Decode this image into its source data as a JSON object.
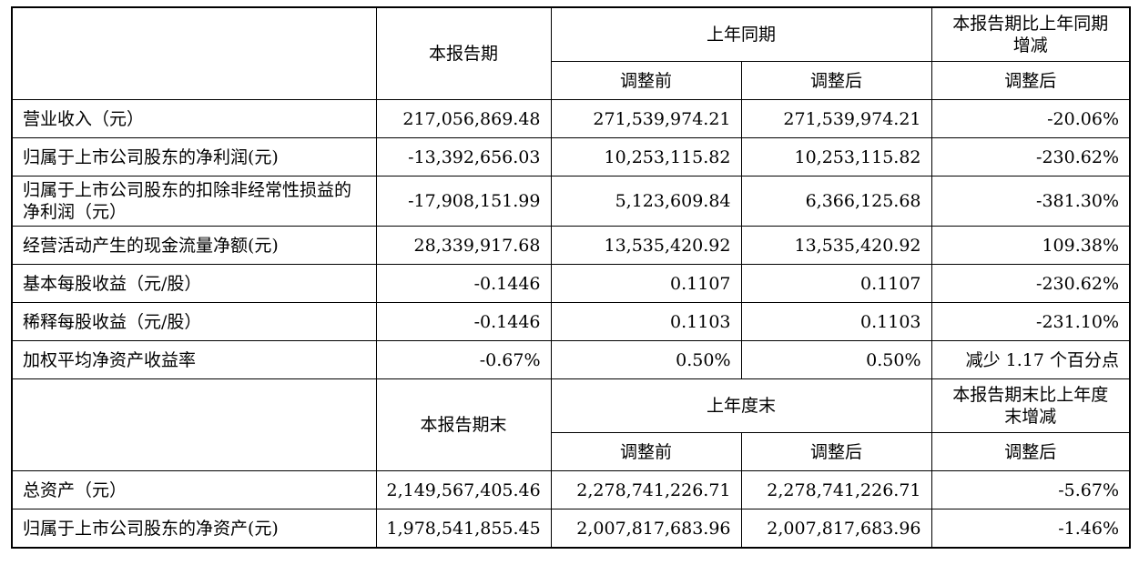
{
  "section1": {
    "header": {
      "current_period": "本报告期",
      "same_period_last_year": "上年同期",
      "change_label": "本报告期比上年同期增减",
      "before_adjustment": "调整前",
      "after_adjustment": "调整后",
      "change_after_adjustment": "调整后"
    },
    "rows": [
      {
        "label": "营业收入（元）",
        "current": "217,056,869.48",
        "before": "271,539,974.21",
        "after": "271,539,974.21",
        "change": "-20.06%"
      },
      {
        "label": "归属于上市公司股东的净利润(元)",
        "current": "-13,392,656.03",
        "before": "10,253,115.82",
        "after": "10,253,115.82",
        "change": "-230.62%"
      },
      {
        "label": "归属于上市公司股东的扣除非经常性损益的净利润（元）",
        "current": "-17,908,151.99",
        "before": "5,123,609.84",
        "after": "6,366,125.68",
        "change": "-381.30%"
      },
      {
        "label": "经营活动产生的现金流量净额(元)",
        "current": "28,339,917.68",
        "before": "13,535,420.92",
        "after": "13,535,420.92",
        "change": "109.38%"
      },
      {
        "label": "基本每股收益（元/股）",
        "current": "-0.1446",
        "before": "0.1107",
        "after": "0.1107",
        "change": "-230.62%"
      },
      {
        "label": "稀释每股收益（元/股）",
        "current": "-0.1446",
        "before": "0.1103",
        "after": "0.1103",
        "change": "-231.10%"
      },
      {
        "label": "加权平均净资产收益率",
        "current": "-0.67%",
        "before": "0.50%",
        "after": "0.50%",
        "change": "减少 1.17 个百分点"
      }
    ]
  },
  "section2": {
    "header": {
      "current_period_end": "本报告期末",
      "last_year_end": "上年度末",
      "change_label": "本报告期末比上年度末增减",
      "before_adjustment": "调整前",
      "after_adjustment": "调整后",
      "change_after_adjustment": "调整后"
    },
    "rows": [
      {
        "label": "总资产（元）",
        "current": "2,149,567,405.46",
        "before": "2,278,741,226.71",
        "after": "2,278,741,226.71",
        "change": "-5.67%"
      },
      {
        "label": "归属于上市公司股东的净资产(元)",
        "current": "1,978,541,855.45",
        "before": "2,007,817,683.96",
        "after": "2,007,817,683.96",
        "change": "-1.46%"
      }
    ]
  }
}
